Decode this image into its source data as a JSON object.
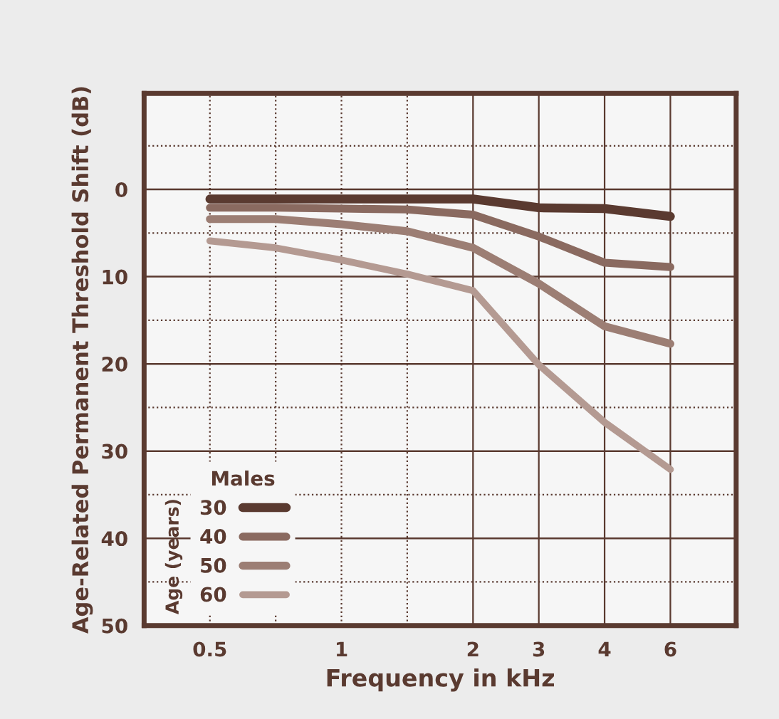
{
  "chart_data": {
    "type": "line",
    "xlabel": "Frequency in kHz",
    "ylabel": "Age-Related Permanent Threshold Shift (dB)",
    "legend_title": "Males",
    "annotations": [
      "Age (years)"
    ],
    "categories": [
      "0.5",
      null,
      "1",
      null,
      "2",
      "3",
      "4",
      "6"
    ],
    "series": [
      {
        "name": "30",
        "color": "#5a3a30",
        "values": [
          1.1,
          1.1,
          1.1,
          1.1,
          1.1,
          2.1,
          2.2,
          3.1
        ]
      },
      {
        "name": "40",
        "color": "#8a6a60",
        "values": [
          2.1,
          2.1,
          2.2,
          2.3,
          2.9,
          5.4,
          8.4,
          8.9
        ]
      },
      {
        "name": "50",
        "color": "#9c7e74",
        "values": [
          3.4,
          3.4,
          4.0,
          4.8,
          6.7,
          10.8,
          15.7,
          17.7
        ]
      },
      {
        "name": "60",
        "color": "#b49a92",
        "values": [
          5.9,
          6.7,
          8.1,
          9.7,
          11.6,
          20.1,
          26.7,
          32.1
        ]
      }
    ],
    "ylim": [
      50,
      -11
    ],
    "yticks": [
      0,
      10,
      20,
      30,
      40,
      50
    ],
    "grid": true,
    "legend": "bottom left"
  }
}
